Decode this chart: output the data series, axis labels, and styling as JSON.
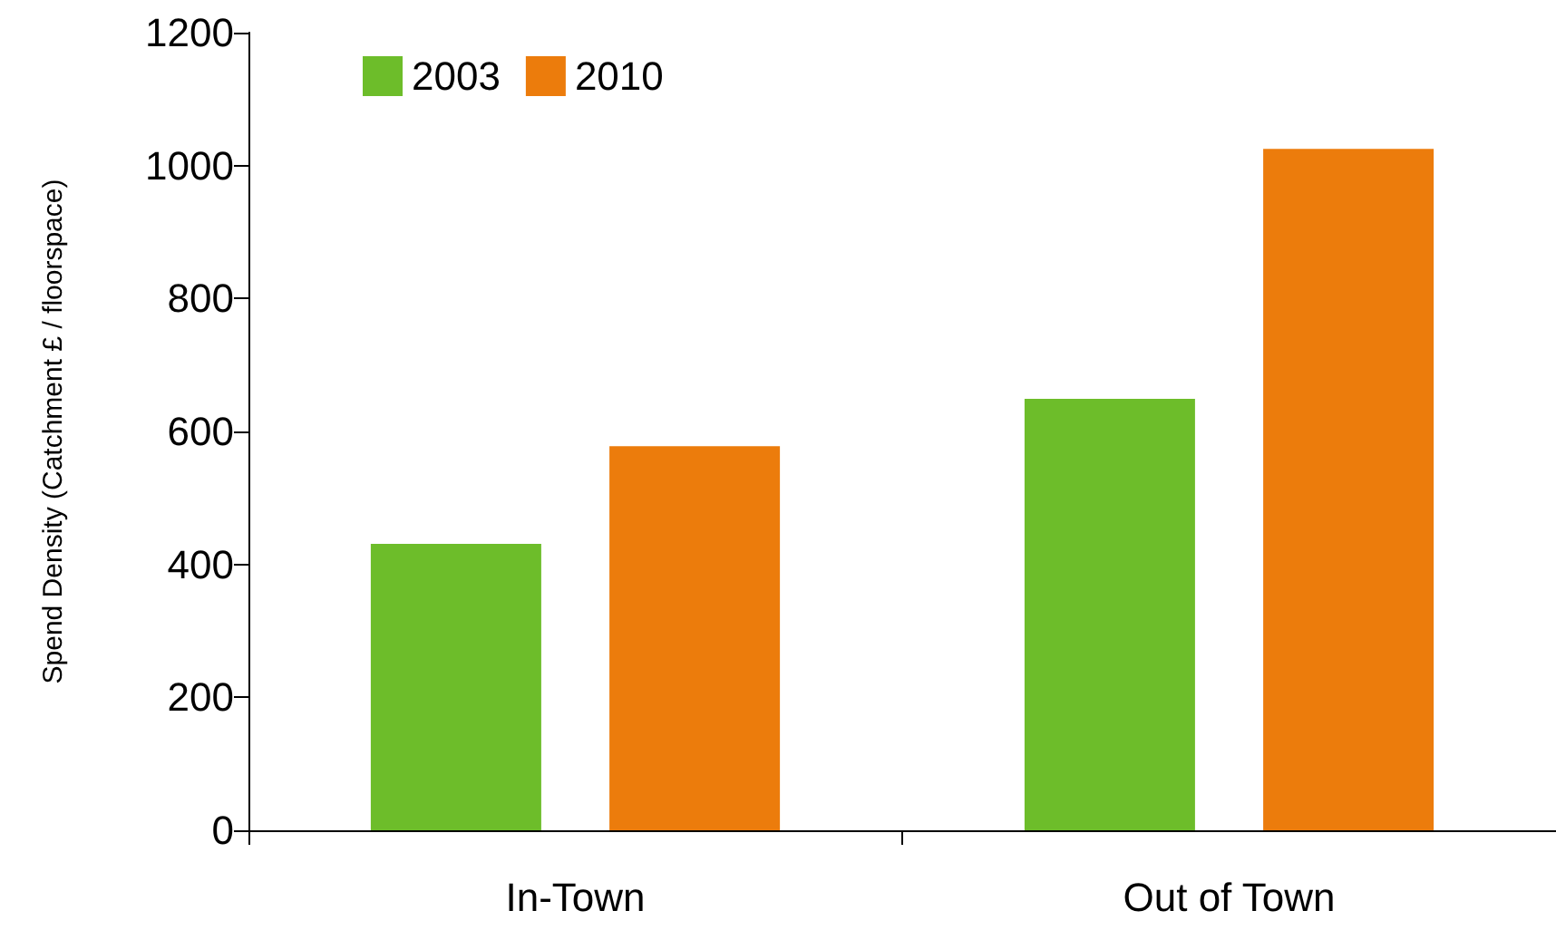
{
  "chart_data": {
    "type": "bar",
    "ylabel": "Spend Density (Catchment £ / floorspace)",
    "categories": [
      "In-Town",
      "Out of Town"
    ],
    "series": [
      {
        "name": "2003",
        "color": "#6dbd2a",
        "values": [
          431,
          649
        ]
      },
      {
        "name": "2010",
        "color": "#ec7c0c",
        "values": [
          578,
          1025
        ]
      }
    ],
    "ylim": [
      0,
      1200
    ],
    "yticks": [
      0,
      200,
      400,
      600,
      800,
      1000,
      1200
    ],
    "grid": false,
    "legend": "top left"
  }
}
